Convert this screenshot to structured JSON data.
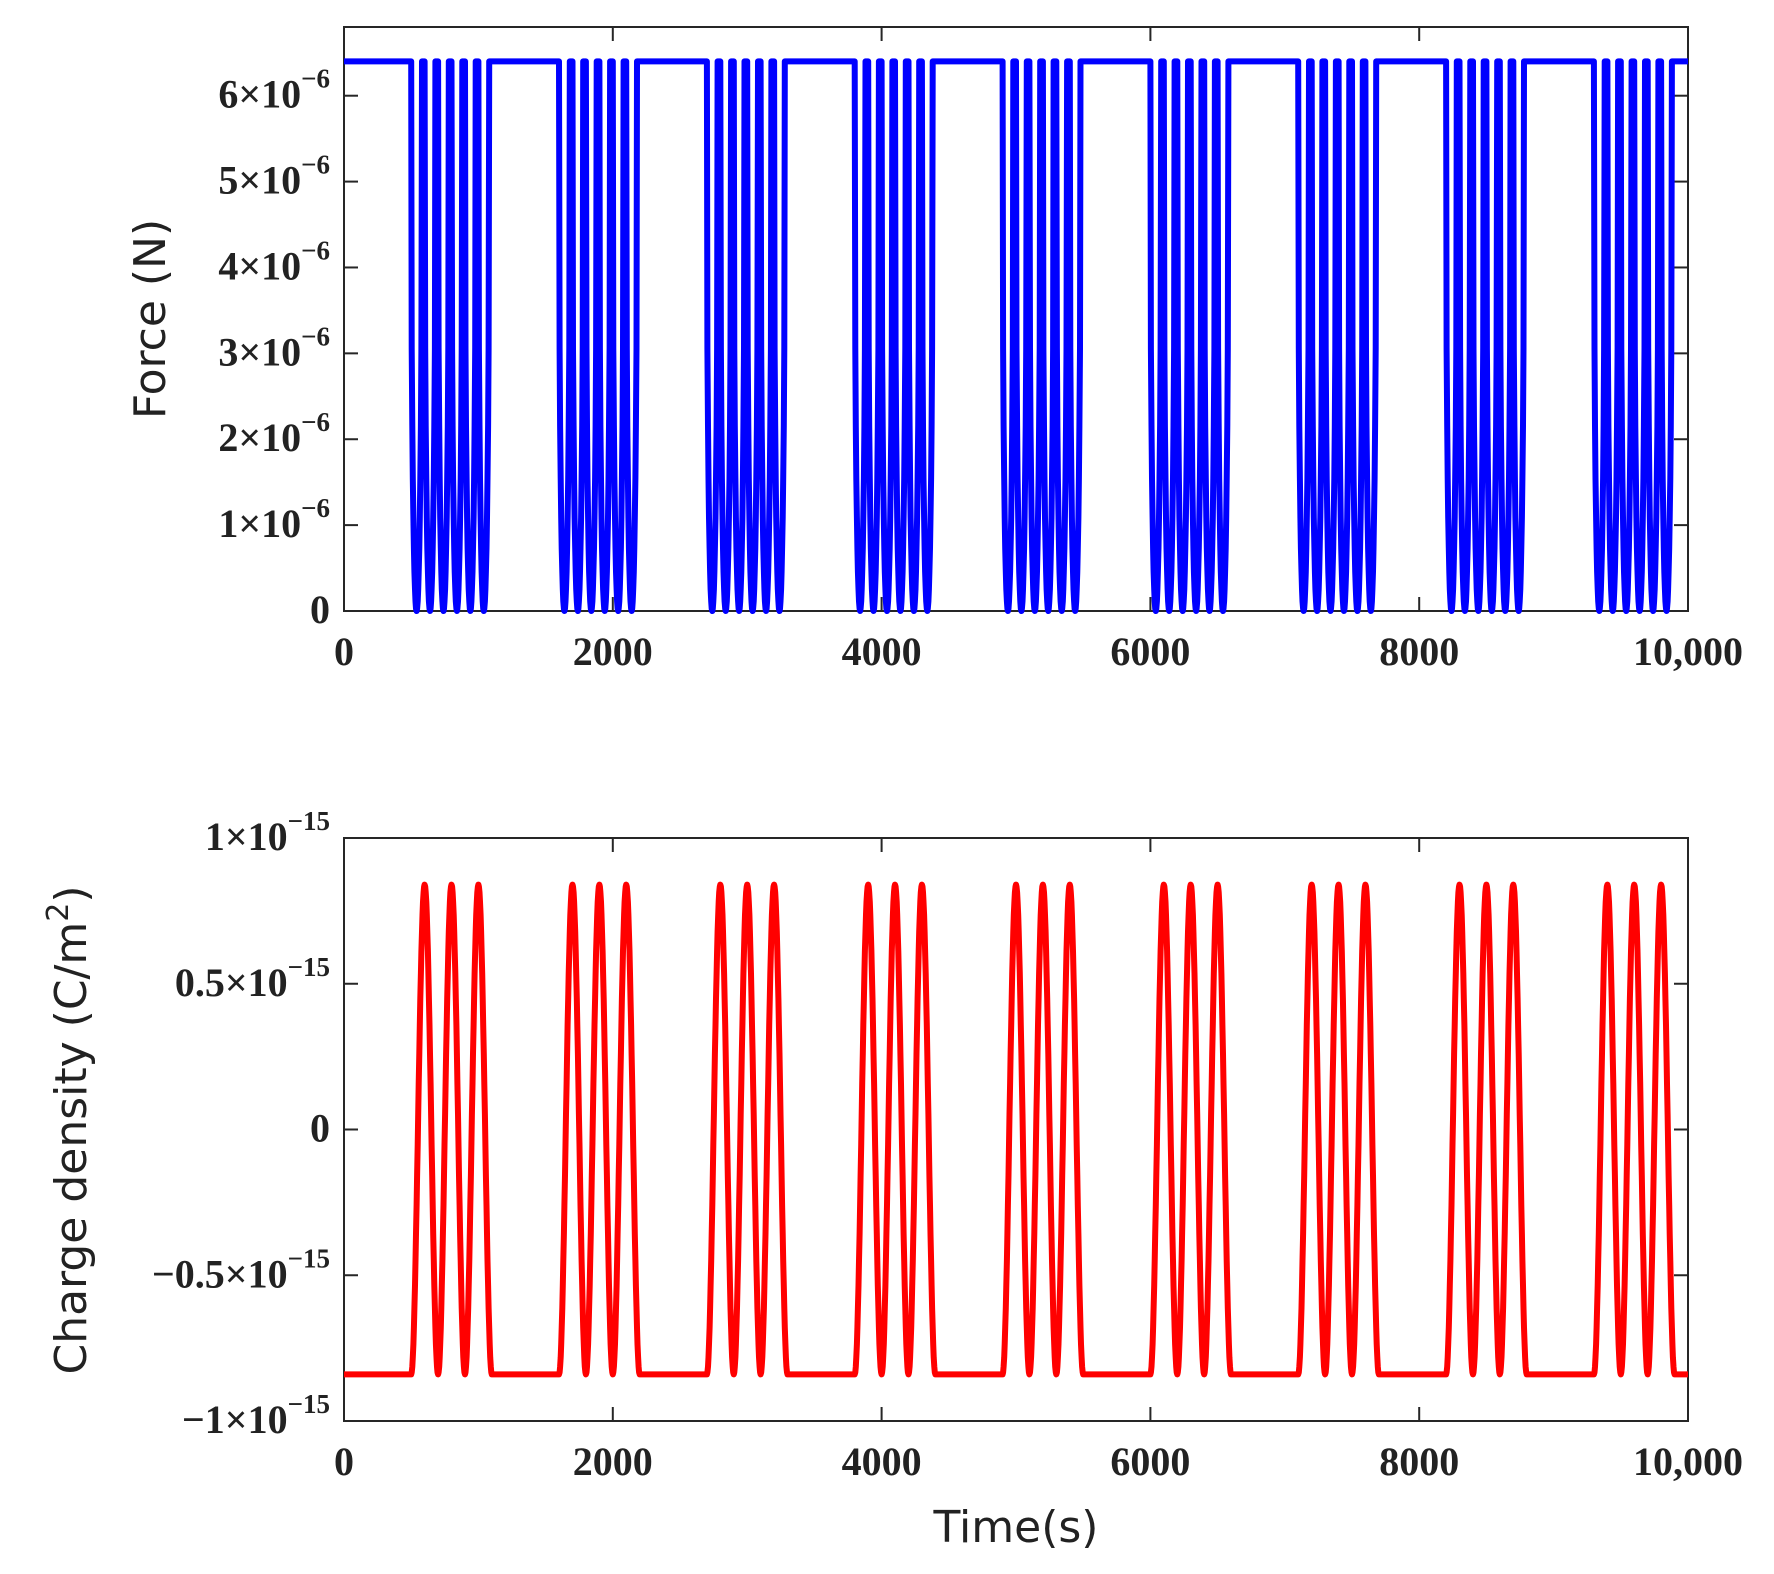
{
  "chart_data": [
    {
      "type": "line",
      "title": "",
      "xlabel": "",
      "ylabel": "Force (N)",
      "xlim": [
        0,
        10000
      ],
      "ylim": [
        0,
        6.8e-06
      ],
      "grid": false,
      "color": "#0000ff",
      "x_ticks": [
        {
          "value": 0,
          "label": "0"
        },
        {
          "value": 2000,
          "label": "2000"
        },
        {
          "value": 4000,
          "label": "4000"
        },
        {
          "value": 6000,
          "label": "6000"
        },
        {
          "value": 8000,
          "label": "8000"
        },
        {
          "value": 10000,
          "label": "10,000"
        }
      ],
      "y_ticks": [
        {
          "value": 0,
          "mantissa": "0",
          "exponent": ""
        },
        {
          "value": 1e-06,
          "mantissa": "1×10",
          "exponent": "−6"
        },
        {
          "value": 2e-06,
          "mantissa": "2×10",
          "exponent": "−6"
        },
        {
          "value": 3e-06,
          "mantissa": "3×10",
          "exponent": "−6"
        },
        {
          "value": 4e-06,
          "mantissa": "4×10",
          "exponent": "−6"
        },
        {
          "value": 5e-06,
          "mantissa": "5×10",
          "exponent": "−6"
        },
        {
          "value": 6e-06,
          "mantissa": "6×10",
          "exponent": "−6"
        }
      ],
      "signal": {
        "shape": "dips",
        "baseline": 6.4e-06,
        "trough": 0,
        "burst_starts": [
          500,
          1600,
          2700,
          3800,
          4900,
          6000,
          7100,
          8200,
          9300
        ],
        "dips_per_burst": 6,
        "dip_spacing": 100,
        "dip_halfwidth": 40
      }
    },
    {
      "type": "line",
      "title": "",
      "xlabel": "Time(s)",
      "ylabel": "Charge density (C/m",
      "ylabel_sup": "2",
      "ylabel_close": ")",
      "xlim": [
        0,
        10000
      ],
      "ylim": [
        -1e-15,
        1e-15
      ],
      "grid": false,
      "color": "#ff0000",
      "x_ticks": [
        {
          "value": 0,
          "label": "0"
        },
        {
          "value": 2000,
          "label": "2000"
        },
        {
          "value": 4000,
          "label": "4000"
        },
        {
          "value": 6000,
          "label": "6000"
        },
        {
          "value": 8000,
          "label": "8000"
        },
        {
          "value": 10000,
          "label": "10,000"
        }
      ],
      "y_ticks": [
        {
          "value": -1e-15,
          "mantissa": "−1×10",
          "exponent": "−15"
        },
        {
          "value": -5e-16,
          "mantissa": "−0.5×10",
          "exponent": "−15"
        },
        {
          "value": 0,
          "mantissa": "0",
          "exponent": ""
        },
        {
          "value": 5e-16,
          "mantissa": "0.5×10",
          "exponent": "−15"
        },
        {
          "value": 1e-15,
          "mantissa": "1×10",
          "exponent": "−15"
        }
      ],
      "signal": {
        "shape": "peaks",
        "baseline": -8.4e-16,
        "peak": 8.4e-16,
        "burst_starts": [
          500,
          1600,
          2700,
          3800,
          4900,
          6000,
          7100,
          8200,
          9300
        ],
        "peaks_per_burst": 3,
        "peak_spacing": 200,
        "peak_halfwidth": 100
      }
    }
  ]
}
